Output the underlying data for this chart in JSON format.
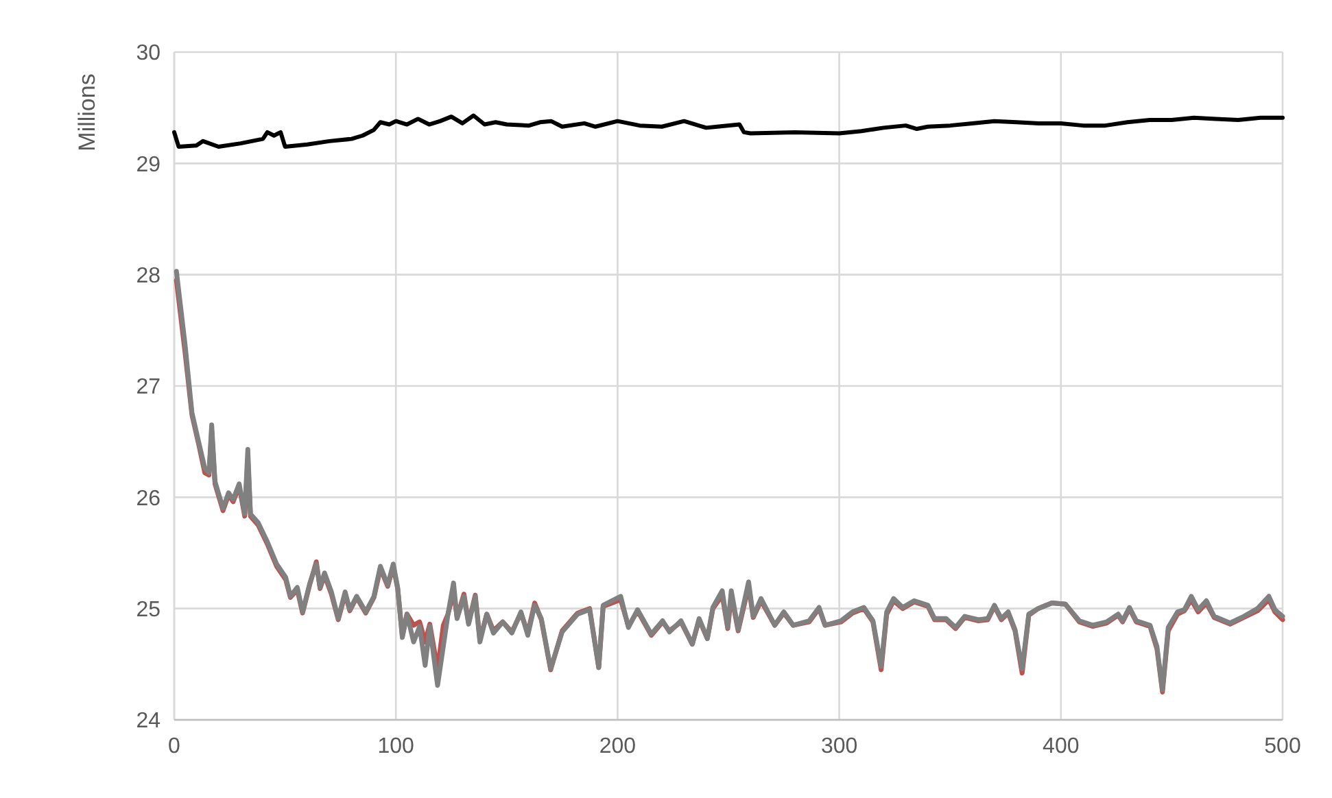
{
  "chart_data": {
    "type": "line",
    "ylabel": "Millions",
    "xlim": [
      0,
      500
    ],
    "ylim": [
      24,
      30
    ],
    "xticks": [
      0,
      100,
      200,
      300,
      400,
      500
    ],
    "yticks": [
      24,
      25,
      26,
      27,
      28,
      29,
      30
    ],
    "grid": true,
    "marker": "none",
    "line_style": "solid",
    "series": [
      {
        "color": "#c0504d",
        "x": [
          1,
          4.9,
          8,
          11,
          13.8,
          15.7,
          16.9,
          18.4,
          22,
          24.5,
          26.6,
          29.3,
          31.8,
          33.2,
          34.4,
          37.9,
          42,
          46.2,
          50.3,
          52.4,
          55.5,
          57.9,
          61.2,
          64.1,
          65.8,
          67.8,
          70.9,
          74,
          77.1,
          79.2,
          82.3,
          86.4,
          90.1,
          93,
          96.3,
          98.8,
          100.8,
          102.9,
          105,
          108,
          110.7,
          113.2,
          115.3,
          118.8,
          121.4,
          123.5,
          126,
          127.6,
          130.7,
          132.8,
          135.8,
          137.9,
          141,
          144,
          148.2,
          152.3,
          156.4,
          159.5,
          162.6,
          165.6,
          169.8,
          175,
          182,
          187.4,
          191.5,
          193.5,
          201.4,
          204.9,
          209,
          215.2,
          220.3,
          223.4,
          228.6,
          233.7,
          236.8,
          240.5,
          243,
          247.2,
          249.7,
          251.3,
          254.4,
          259.1,
          261.2,
          264.7,
          270.9,
          275,
          279.2,
          286.4,
          290.9,
          293.6,
          300.8,
          306,
          311.1,
          315.2,
          318.9,
          321.4,
          324.5,
          328.6,
          333.8,
          340,
          343,
          348.2,
          352.5,
          356.6,
          362.8,
          367,
          370,
          373.1,
          376.2,
          379.3,
          382.5,
          385.5,
          389.7,
          395.9,
          402,
          408.3,
          414.4,
          420.6,
          425.8,
          427.8,
          430.9,
          434,
          440.2,
          443.3,
          445.8,
          448.4,
          452.6,
          455.7,
          458.8,
          461.9,
          465.6,
          469.1,
          476.3,
          482.5,
          488.7,
          493.8,
          496.5,
          500
        ],
        "values": [
          27.95,
          27.3,
          26.74,
          26.48,
          26.22,
          26.2,
          26.6,
          26.12,
          25.88,
          26.02,
          25.96,
          26.1,
          25.83,
          26.35,
          25.83,
          25.75,
          25.58,
          25.38,
          25.26,
          25.1,
          25.17,
          24.96,
          25.22,
          25.42,
          25.18,
          25.3,
          25.13,
          24.9,
          25.13,
          24.98,
          25.1,
          24.96,
          25.1,
          25.36,
          25.2,
          25.38,
          25.18,
          24.75,
          24.95,
          24.85,
          24.88,
          24.7,
          24.86,
          24.45,
          24.85,
          24.95,
          25.15,
          24.92,
          25.13,
          24.87,
          25.12,
          24.72,
          24.95,
          24.8,
          24.88,
          24.79,
          24.96,
          24.78,
          25.05,
          24.9,
          24.45,
          24.8,
          24.96,
          25.0,
          24.47,
          25.02,
          25.08,
          24.84,
          24.98,
          24.76,
          24.88,
          24.8,
          24.88,
          24.68,
          24.9,
          24.73,
          25.0,
          25.12,
          24.82,
          25.12,
          24.8,
          25.2,
          24.92,
          25.07,
          24.85,
          24.96,
          24.85,
          24.88,
          25.0,
          24.85,
          24.88,
          24.96,
          25.0,
          24.88,
          24.45,
          24.95,
          25.07,
          25.0,
          25.06,
          25.02,
          24.9,
          24.9,
          24.82,
          24.92,
          24.89,
          24.9,
          25.02,
          24.9,
          24.96,
          24.8,
          24.42,
          24.94,
          25.0,
          25.05,
          25.04,
          24.88,
          24.84,
          24.87,
          24.94,
          24.88,
          25.0,
          24.88,
          24.84,
          24.64,
          24.25,
          24.8,
          24.95,
          24.98,
          25.08,
          24.97,
          25.05,
          24.92,
          24.86,
          24.92,
          24.98,
          25.08,
          24.97,
          24.9
        ]
      },
      {
        "color": "#808080",
        "x": [
          1,
          4.9,
          8,
          11,
          13.8,
          15.7,
          16.9,
          18.4,
          22,
          24.5,
          26.6,
          29.3,
          31.8,
          33.2,
          34.4,
          37.9,
          42,
          46.2,
          50.3,
          52.4,
          55.5,
          57.9,
          61.2,
          64.1,
          65.8,
          67.8,
          70.9,
          74,
          77.1,
          79.2,
          82.3,
          86.4,
          90.1,
          93,
          96.3,
          98.8,
          100.8,
          102.9,
          105,
          108,
          110.7,
          113.2,
          115.3,
          118.8,
          121.4,
          123.5,
          126,
          127.6,
          130.7,
          132.8,
          135.8,
          137.9,
          141,
          144,
          148.2,
          152.3,
          156.4,
          159.5,
          162.6,
          165.6,
          169.8,
          175,
          182,
          187.4,
          191.5,
          193.5,
          201.4,
          204.9,
          209,
          215.2,
          220.3,
          223.4,
          228.6,
          233.7,
          236.8,
          240.5,
          243,
          247.2,
          249.7,
          251.3,
          254.4,
          259.1,
          261.2,
          264.7,
          270.9,
          275,
          279.2,
          286.4,
          290.9,
          293.6,
          300.8,
          306,
          311.1,
          315.2,
          318.9,
          321.4,
          324.5,
          328.6,
          333.8,
          340,
          343,
          348.2,
          352.5,
          356.6,
          362.8,
          367,
          370,
          373.1,
          376.2,
          379.3,
          382.5,
          385.5,
          389.7,
          395.9,
          402,
          408.3,
          414.4,
          420.6,
          425.8,
          427.8,
          430.9,
          434,
          440.2,
          443.3,
          445.8,
          448.4,
          452.6,
          455.7,
          458.8,
          461.9,
          465.6,
          469.1,
          476.3,
          482.5,
          488.7,
          493.8,
          496.5,
          500
        ],
        "values": [
          28.03,
          27.37,
          26.76,
          26.5,
          26.26,
          26.22,
          26.65,
          26.14,
          25.9,
          26.04,
          25.98,
          26.12,
          25.85,
          26.43,
          25.85,
          25.77,
          25.6,
          25.4,
          25.28,
          25.11,
          25.19,
          24.97,
          25.23,
          25.4,
          25.19,
          25.32,
          25.15,
          24.91,
          25.15,
          24.99,
          25.11,
          24.97,
          25.11,
          25.38,
          25.21,
          25.4,
          25.19,
          24.74,
          24.95,
          24.7,
          24.84,
          24.49,
          24.84,
          24.31,
          24.66,
          24.95,
          25.23,
          24.91,
          25.11,
          24.86,
          25.11,
          24.7,
          24.95,
          24.78,
          24.88,
          24.78,
          24.97,
          24.76,
          25.03,
          24.91,
          24.46,
          24.79,
          24.95,
          24.99,
          24.47,
          25.03,
          25.11,
          24.83,
          24.99,
          24.77,
          24.89,
          24.79,
          24.89,
          24.68,
          24.91,
          24.73,
          25.01,
          25.16,
          24.83,
          25.16,
          24.81,
          25.24,
          24.93,
          25.09,
          24.85,
          24.97,
          24.85,
          24.89,
          25.01,
          24.85,
          24.89,
          24.97,
          25.01,
          24.89,
          24.48,
          24.97,
          25.09,
          25.01,
          25.07,
          25.03,
          24.91,
          24.91,
          24.83,
          24.93,
          24.9,
          24.91,
          25.03,
          24.91,
          24.97,
          24.81,
          24.46,
          24.95,
          25.0,
          25.05,
          25.04,
          24.89,
          24.85,
          24.88,
          24.95,
          24.89,
          25.01,
          24.89,
          24.85,
          24.66,
          24.27,
          24.83,
          24.97,
          24.99,
          25.11,
          24.99,
          25.07,
          24.93,
          24.87,
          24.93,
          25.0,
          25.11,
          24.99,
          24.93
        ]
      },
      {
        "color": "#000000",
        "x": [
          0,
          2,
          10,
          13,
          20,
          30,
          40,
          42,
          45,
          48,
          50,
          60,
          70,
          80,
          85,
          90,
          93,
          97,
          100,
          105,
          110,
          115,
          120,
          125,
          130,
          135,
          140,
          145,
          150,
          160,
          165,
          170,
          175,
          185,
          190,
          200,
          210,
          220,
          230,
          240,
          245,
          255,
          257,
          260,
          280,
          300,
          310,
          320,
          330,
          335,
          340,
          350,
          360,
          370,
          380,
          390,
          400,
          410,
          420,
          430,
          440,
          450,
          460,
          470,
          480,
          490,
          500
        ],
        "values": [
          29.28,
          29.15,
          29.16,
          29.2,
          29.15,
          29.18,
          29.22,
          29.28,
          29.25,
          29.28,
          29.15,
          29.17,
          29.2,
          29.22,
          29.25,
          29.3,
          29.37,
          29.35,
          29.38,
          29.35,
          29.4,
          29.35,
          29.38,
          29.42,
          29.36,
          29.43,
          29.35,
          29.37,
          29.35,
          29.34,
          29.37,
          29.38,
          29.33,
          29.36,
          29.33,
          29.38,
          29.34,
          29.33,
          29.38,
          29.32,
          29.33,
          29.35,
          29.28,
          29.27,
          29.28,
          29.27,
          29.29,
          29.32,
          29.34,
          29.31,
          29.33,
          29.34,
          29.36,
          29.38,
          29.37,
          29.36,
          29.36,
          29.34,
          29.34,
          29.37,
          29.39,
          29.39,
          29.41,
          29.4,
          29.39,
          29.41,
          29.41
        ]
      }
    ]
  }
}
